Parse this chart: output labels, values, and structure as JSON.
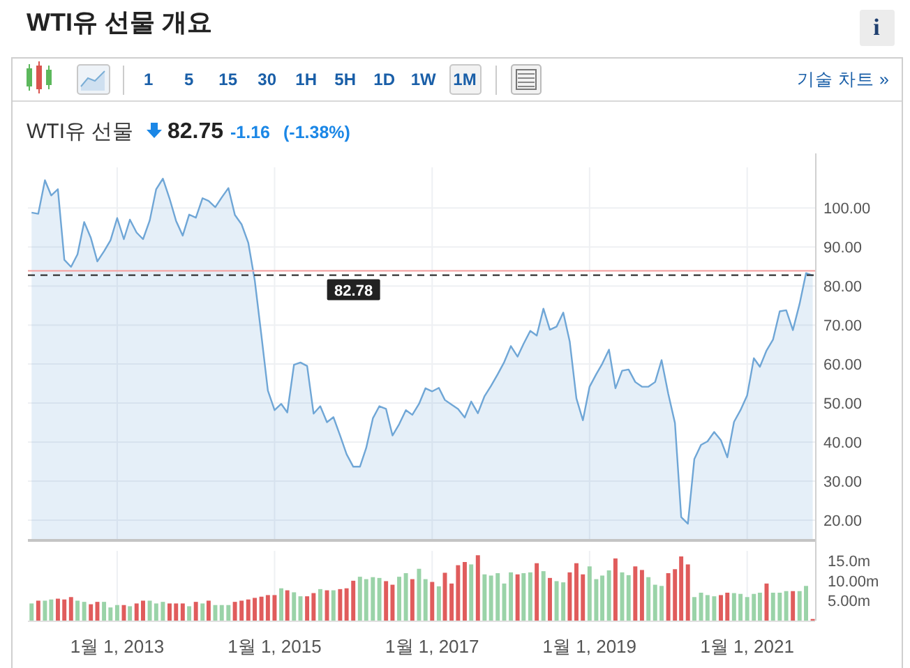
{
  "chart_data": [
    {
      "type": "area",
      "title": "WTI유 선물 개요",
      "subtitle": "WTI유 선물",
      "annotations": [
        "1 5 15 30 1H 5H 1D 1W 1M",
        "기술 차트 »",
        "82.75",
        "-1.16",
        "(-1.38%)",
        "i"
      ],
      "x": [
        "2011-12",
        "2012-01",
        "2012-02",
        "2012-03",
        "2012-04",
        "2012-05",
        "2012-06",
        "2012-07",
        "2012-08",
        "2012-09",
        "2012-10",
        "2012-11",
        "2012-12",
        "2013-01",
        "2013-02",
        "2013-03",
        "2013-04",
        "2013-05",
        "2013-06",
        "2013-07",
        "2013-08",
        "2013-09",
        "2013-10",
        "2013-11",
        "2013-12",
        "2014-01",
        "2014-02",
        "2014-03",
        "2014-04",
        "2014-05",
        "2014-06",
        "2014-07",
        "2014-08",
        "2014-09",
        "2014-10",
        "2014-11",
        "2014-12",
        "2015-01",
        "2015-02",
        "2015-03",
        "2015-04",
        "2015-05",
        "2015-06",
        "2015-07",
        "2015-08",
        "2015-09",
        "2015-10",
        "2015-11",
        "2015-12",
        "2016-01",
        "2016-02",
        "2016-03",
        "2016-04",
        "2016-05",
        "2016-06",
        "2016-07",
        "2016-08",
        "2016-09",
        "2016-10",
        "2016-11",
        "2016-12",
        "2017-01",
        "2017-02",
        "2017-03",
        "2017-04",
        "2017-05",
        "2017-06",
        "2017-07",
        "2017-08",
        "2017-09",
        "2017-10",
        "2017-11",
        "2017-12",
        "2018-01",
        "2018-02",
        "2018-03",
        "2018-04",
        "2018-05",
        "2018-06",
        "2018-07",
        "2018-08",
        "2018-09",
        "2018-10",
        "2018-11",
        "2018-12",
        "2019-01",
        "2019-02",
        "2019-03",
        "2019-04",
        "2019-05",
        "2019-06",
        "2019-07",
        "2019-08",
        "2019-09",
        "2019-10",
        "2019-11",
        "2019-12",
        "2020-01",
        "2020-02",
        "2020-03",
        "2020-04",
        "2020-05",
        "2020-06",
        "2020-07",
        "2020-08",
        "2020-09",
        "2020-10",
        "2020-11",
        "2020-12",
        "2021-01",
        "2021-02",
        "2021-03",
        "2021-04",
        "2021-05",
        "2021-06",
        "2021-07",
        "2021-08",
        "2021-09",
        "2021-10",
        "2021-11"
      ],
      "series": [
        {
          "color": "#6fa6d6",
          "values": [
            98.8,
            98.5,
            107.1,
            103.2,
            104.8,
            86.7,
            84.9,
            88.1,
            96.4,
            92.3,
            86.3,
            88.9,
            91.7,
            97.4,
            92.0,
            97.0,
            93.7,
            92.0,
            96.8,
            104.8,
            107.5,
            102.4,
            96.7,
            92.9,
            98.3,
            97.5,
            102.5,
            101.8,
            100.2,
            102.7,
            105.1,
            98.2,
            95.8,
            91.1,
            81.5,
            67.3,
            53.2,
            48.2,
            49.8,
            47.6,
            59.8,
            60.4,
            59.5,
            47.3,
            49.2,
            45.1,
            46.4,
            41.7,
            36.9,
            33.7,
            33.7,
            38.5,
            46.1,
            49.2,
            48.5,
            41.7,
            44.6,
            48.2,
            47.0,
            49.8,
            53.8,
            53.0,
            53.9,
            50.8,
            49.6,
            48.5,
            46.3,
            50.4,
            47.4,
            51.8,
            54.4,
            57.4,
            60.5,
            64.6,
            61.9,
            65.2,
            68.5,
            67.3,
            74.2,
            68.8,
            69.6,
            73.2,
            65.8,
            51.2,
            45.6,
            54.2,
            57.4,
            60.1,
            63.7,
            53.8,
            58.3,
            58.6,
            55.4,
            54.2,
            54.2,
            55.4,
            61.0,
            52.4,
            44.9,
            20.8,
            19.1,
            35.7,
            39.3,
            40.2,
            42.6,
            40.5,
            36.1,
            45.2,
            48.2,
            52.0,
            61.5,
            59.3,
            63.5,
            66.3,
            73.5,
            73.8,
            68.7,
            75.4,
            83.3,
            82.7
          ]
        }
      ],
      "xlim": [
        "2011-11-14",
        "2021-11-12"
      ],
      "xticks": [
        {
          "value": "2013-01-01",
          "label": null
        },
        {
          "value": "2015-01-01",
          "label": null
        },
        {
          "value": "2017-01-01",
          "label": null
        },
        {
          "value": "2019-01-01",
          "label": null
        },
        {
          "value": "2021-01-01",
          "label": null
        }
      ],
      "ylim": [
        15,
        110.4
      ],
      "yticks": [
        {
          "value": 20,
          "label": "20.00"
        },
        {
          "value": 30,
          "label": "30.00"
        },
        {
          "value": 40,
          "label": "40.00"
        },
        {
          "value": 50,
          "label": "50.00"
        },
        {
          "value": 60,
          "label": "60.00"
        },
        {
          "value": 70,
          "label": "70.00"
        },
        {
          "value": 80,
          "label": "80.00"
        },
        {
          "value": 90,
          "label": "90.00"
        },
        {
          "value": 100,
          "label": "100.00"
        }
      ],
      "ref_lines": [
        {
          "axis": "y",
          "value": 83.91,
          "color": "#f4a6a6"
        },
        {
          "axis": "y",
          "value": 82.78,
          "label": "82.78",
          "color": "#333333",
          "line_style": "dashed"
        }
      ],
      "grid": true,
      "tick_labels": "y"
    },
    {
      "type": "bar",
      "x": [
        "2011-12",
        "2012-01",
        "2012-02",
        "2012-03",
        "2012-04",
        "2012-05",
        "2012-06",
        "2012-07",
        "2012-08",
        "2012-09",
        "2012-10",
        "2012-11",
        "2012-12",
        "2013-01",
        "2013-02",
        "2013-03",
        "2013-04",
        "2013-05",
        "2013-06",
        "2013-07",
        "2013-08",
        "2013-09",
        "2013-10",
        "2013-11",
        "2013-12",
        "2014-01",
        "2014-02",
        "2014-03",
        "2014-04",
        "2014-05",
        "2014-06",
        "2014-07",
        "2014-08",
        "2014-09",
        "2014-10",
        "2014-11",
        "2014-12",
        "2015-01",
        "2015-02",
        "2015-03",
        "2015-04",
        "2015-05",
        "2015-06",
        "2015-07",
        "2015-08",
        "2015-09",
        "2015-10",
        "2015-11",
        "2015-12",
        "2016-01",
        "2016-02",
        "2016-03",
        "2016-04",
        "2016-05",
        "2016-06",
        "2016-07",
        "2016-08",
        "2016-09",
        "2016-10",
        "2016-11",
        "2016-12",
        "2017-01",
        "2017-02",
        "2017-03",
        "2017-04",
        "2017-05",
        "2017-06",
        "2017-07",
        "2017-08",
        "2017-09",
        "2017-10",
        "2017-11",
        "2017-12",
        "2018-01",
        "2018-02",
        "2018-03",
        "2018-04",
        "2018-05",
        "2018-06",
        "2018-07",
        "2018-08",
        "2018-09",
        "2018-10",
        "2018-11",
        "2018-12",
        "2019-01",
        "2019-02",
        "2019-03",
        "2019-04",
        "2019-05",
        "2019-06",
        "2019-07",
        "2019-08",
        "2019-09",
        "2019-10",
        "2019-11",
        "2019-12",
        "2020-01",
        "2020-02",
        "2020-03",
        "2020-04",
        "2020-05",
        "2020-06",
        "2020-07",
        "2020-08",
        "2020-09",
        "2020-10",
        "2020-11",
        "2020-12",
        "2021-01",
        "2021-02",
        "2021-03",
        "2021-04",
        "2021-05",
        "2021-06",
        "2021-07",
        "2021-08",
        "2021-09",
        "2021-10",
        "2021-11"
      ],
      "values": [
        4.3,
        5.0,
        5.0,
        5.3,
        5.5,
        5.3,
        5.9,
        5.0,
        4.7,
        4.1,
        4.7,
        4.7,
        3.3,
        3.9,
        3.9,
        3.6,
        4.3,
        5.0,
        5.0,
        4.3,
        4.7,
        4.3,
        4.3,
        4.3,
        3.6,
        4.7,
        4.3,
        5.0,
        3.9,
        3.9,
        3.9,
        4.7,
        5.0,
        5.3,
        5.7,
        6.0,
        6.4,
        6.4,
        8.1,
        7.6,
        7.1,
        6.1,
        6.1,
        6.9,
        7.9,
        7.6,
        7.6,
        7.9,
        8.1,
        10.0,
        11.0,
        10.4,
        10.9,
        10.7,
        9.9,
        9.0,
        11.0,
        11.9,
        10.4,
        13.0,
        10.4,
        9.7,
        8.6,
        12.0,
        9.3,
        13.9,
        14.7,
        14.1,
        16.4,
        11.6,
        11.3,
        11.9,
        9.3,
        12.1,
        11.6,
        11.9,
        12.1,
        14.4,
        12.4,
        10.7,
        9.9,
        9.6,
        12.1,
        14.4,
        11.6,
        13.6,
        10.4,
        11.3,
        12.6,
        15.6,
        12.1,
        11.4,
        13.6,
        12.7,
        10.9,
        9.0,
        8.7,
        11.9,
        12.9,
        16.1,
        14.1,
        5.9,
        7.0,
        6.4,
        6.1,
        6.4,
        7.0,
        6.9,
        6.7,
        5.9,
        6.7,
        7.0,
        9.3,
        7.0,
        7.0,
        7.4,
        7.4,
        7.4,
        8.7,
        0.4
      ],
      "colors": [
        "#9ad3a8",
        "#e05c5c",
        "#9ad3a8",
        "#9ad3a8",
        "#e05c5c",
        "#e05c5c",
        "#e05c5c",
        "#9ad3a8",
        "#9ad3a8",
        "#e05c5c",
        "#e05c5c",
        "#9ad3a8",
        "#9ad3a8",
        "#9ad3a8",
        "#e05c5c",
        "#9ad3a8",
        "#e05c5c",
        "#e05c5c",
        "#9ad3a8",
        "#9ad3a8",
        "#9ad3a8",
        "#e05c5c",
        "#e05c5c",
        "#e05c5c",
        "#9ad3a8",
        "#e05c5c",
        "#9ad3a8",
        "#e05c5c",
        "#9ad3a8",
        "#9ad3a8",
        "#9ad3a8",
        "#e05c5c",
        "#e05c5c",
        "#e05c5c",
        "#e05c5c",
        "#e05c5c",
        "#e05c5c",
        "#e05c5c",
        "#9ad3a8",
        "#e05c5c",
        "#9ad3a8",
        "#9ad3a8",
        "#e05c5c",
        "#e05c5c",
        "#9ad3a8",
        "#e05c5c",
        "#9ad3a8",
        "#e05c5c",
        "#e05c5c",
        "#e05c5c",
        "#9ad3a8",
        "#9ad3a8",
        "#9ad3a8",
        "#9ad3a8",
        "#e05c5c",
        "#e05c5c",
        "#9ad3a8",
        "#9ad3a8",
        "#e05c5c",
        "#9ad3a8",
        "#9ad3a8",
        "#e05c5c",
        "#9ad3a8",
        "#e05c5c",
        "#e05c5c",
        "#e05c5c",
        "#e05c5c",
        "#9ad3a8",
        "#e05c5c",
        "#9ad3a8",
        "#9ad3a8",
        "#9ad3a8",
        "#9ad3a8",
        "#9ad3a8",
        "#e05c5c",
        "#9ad3a8",
        "#9ad3a8",
        "#e05c5c",
        "#9ad3a8",
        "#e05c5c",
        "#9ad3a8",
        "#9ad3a8",
        "#e05c5c",
        "#e05c5c",
        "#e05c5c",
        "#9ad3a8",
        "#9ad3a8",
        "#9ad3a8",
        "#9ad3a8",
        "#e05c5c",
        "#9ad3a8",
        "#9ad3a8",
        "#e05c5c",
        "#e05c5c",
        "#9ad3a8",
        "#9ad3a8",
        "#9ad3a8",
        "#e05c5c",
        "#e05c5c",
        "#e05c5c",
        "#e05c5c",
        "#9ad3a8",
        "#9ad3a8",
        "#9ad3a8",
        "#9ad3a8",
        "#e05c5c",
        "#e05c5c",
        "#9ad3a8",
        "#9ad3a8",
        "#9ad3a8",
        "#9ad3a8",
        "#9ad3a8",
        "#e05c5c",
        "#9ad3a8",
        "#9ad3a8",
        "#9ad3a8",
        "#e05c5c",
        "#9ad3a8",
        "#9ad3a8",
        "#e05c5c"
      ],
      "xlim": [
        "2011-11-14",
        "2021-11-12"
      ],
      "xticks": [
        {
          "value": "2013-01-01",
          "label": "1월 1, 2013"
        },
        {
          "value": "2015-01-01",
          "label": "1월 1, 2015"
        },
        {
          "value": "2017-01-01",
          "label": "1월 1, 2017"
        },
        {
          "value": "2019-01-01",
          "label": "1월 1, 2019"
        },
        {
          "value": "2021-01-01",
          "label": "1월 1, 2021"
        }
      ],
      "ylim": [
        0,
        17.5
      ],
      "yticks": [
        {
          "value": 5,
          "label": "5.00m"
        },
        {
          "value": 10,
          "label": "10.00m"
        },
        {
          "value": 15,
          "label": "15.0m"
        }
      ],
      "grid": "x"
    }
  ]
}
